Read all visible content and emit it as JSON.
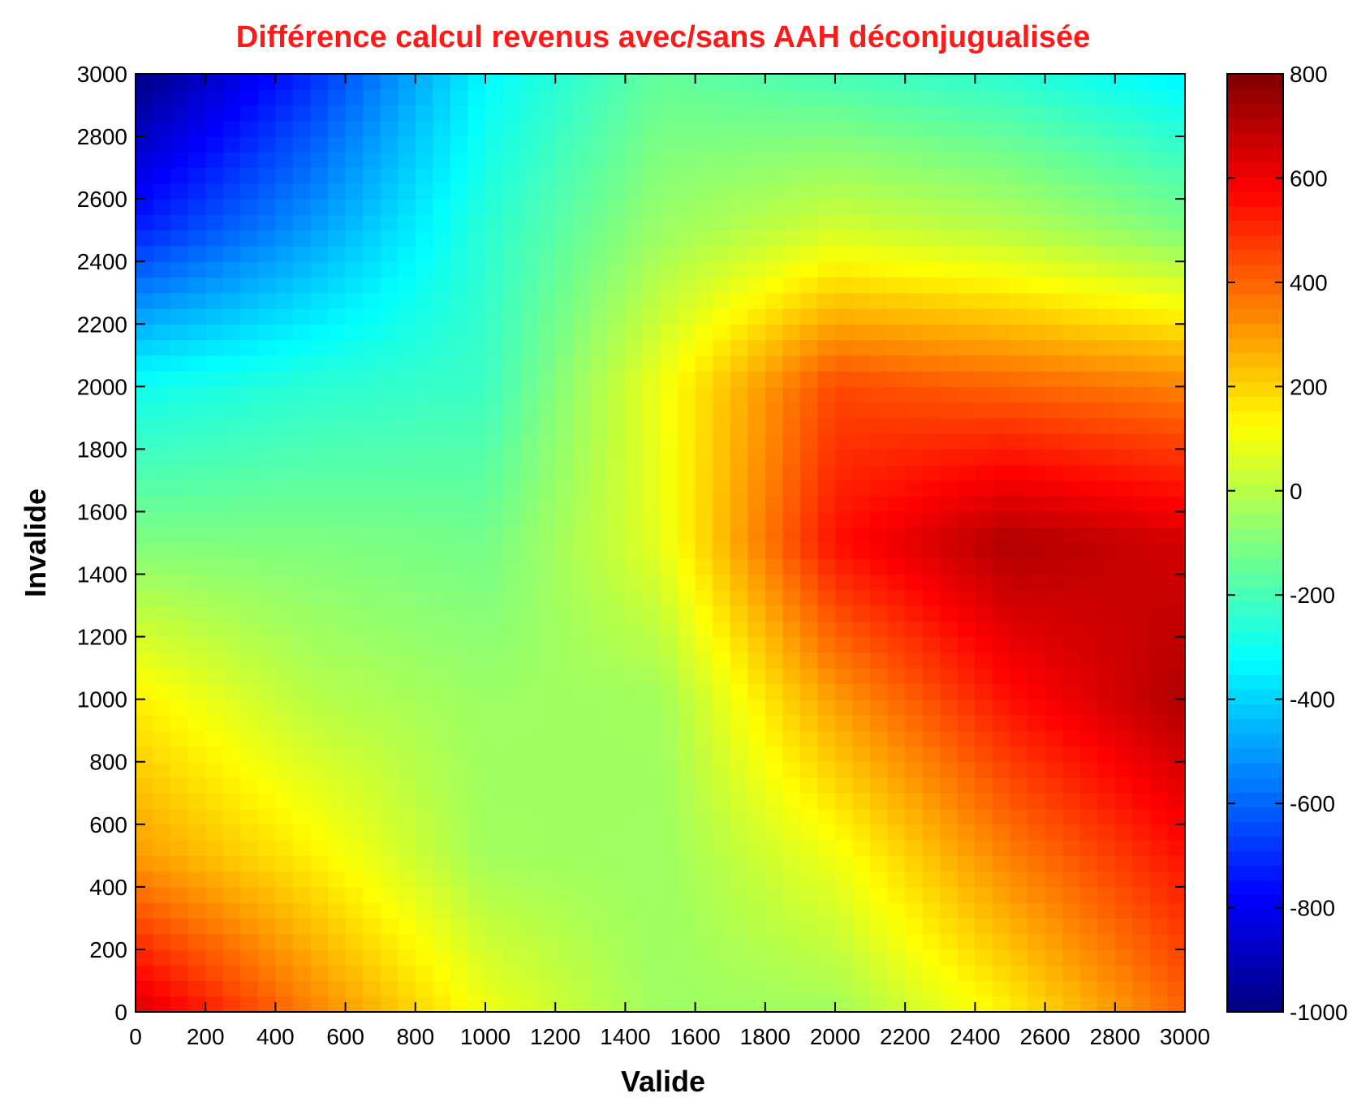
{
  "chart_data": {
    "type": "heatmap",
    "title": "Différence calcul revenus avec/sans AAH déconjugualisée",
    "xlabel": "Valide",
    "ylabel": "Invalide",
    "xlim": [
      0,
      3000
    ],
    "ylim": [
      0,
      3000
    ],
    "x_ticks": [
      "0",
      "200",
      "400",
      "600",
      "800",
      "1000",
      "1200",
      "1400",
      "1600",
      "1800",
      "2000",
      "2200",
      "2400",
      "2600",
      "2800",
      "3000"
    ],
    "y_ticks": [
      "0",
      "200",
      "400",
      "600",
      "800",
      "1000",
      "1200",
      "1400",
      "1600",
      "1800",
      "2000",
      "2200",
      "2400",
      "2600",
      "2800",
      "3000"
    ],
    "colorbar": {
      "range": [
        -1000,
        800
      ],
      "ticks": [
        "-1000",
        "-800",
        "-600",
        "-400",
        "-200",
        "0",
        "200",
        "400",
        "600",
        "800"
      ],
      "colormap": "jet"
    },
    "grid_x": [
      0,
      500,
      1000,
      1500,
      2000,
      2500,
      3000
    ],
    "grid_y": [
      0,
      500,
      1000,
      1500,
      2000,
      2500,
      3000
    ],
    "z": [
      [
        650,
        350,
        100,
        -50,
        -40,
        150,
        400
      ],
      [
        300,
        150,
        -40,
        -50,
        100,
        350,
        550
      ],
      [
        150,
        0,
        -50,
        -40,
        300,
        550,
        720
      ],
      [
        -100,
        -100,
        -120,
        80,
        550,
        720,
        650
      ],
      [
        -300,
        -250,
        -220,
        100,
        450,
        400,
        350
      ],
      [
        -720,
        -500,
        -250,
        -50,
        50,
        0,
        -100
      ],
      [
        -1000,
        -700,
        -330,
        -150,
        -200,
        -250,
        -350
      ]
    ],
    "colors": {
      "title": "#ff1a1a"
    }
  }
}
